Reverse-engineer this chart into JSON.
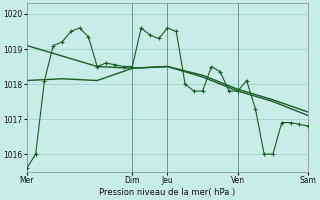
{
  "title": "",
  "xlabel": "Pression niveau de la mer( hPa )",
  "bg_color": "#c8ece6",
  "grid_color": "#a8d8d0",
  "line_color": "#1a5c28",
  "ylim": [
    1015.5,
    1020.3
  ],
  "ytick_values": [
    1016,
    1017,
    1018,
    1019,
    1020
  ],
  "line1_x": [
    0,
    6,
    12,
    18,
    24,
    30,
    36,
    42,
    48,
    54,
    60,
    66,
    72,
    78,
    84,
    90,
    96,
    102,
    108,
    114,
    120,
    126,
    132,
    138,
    144,
    150,
    156,
    162,
    168,
    174,
    180,
    186,
    192
  ],
  "line1_y": [
    1015.6,
    1016.0,
    1018.1,
    1019.1,
    1019.2,
    1019.5,
    1019.6,
    1019.35,
    1018.5,
    1018.6,
    1018.55,
    1018.5,
    1018.5,
    1019.6,
    1019.4,
    1019.3,
    1019.6,
    1019.5,
    1018.0,
    1017.8,
    1017.8,
    1018.5,
    1018.35,
    1017.8,
    1017.8,
    1018.1,
    1017.3,
    1016.0,
    1016.0,
    1016.9,
    1016.9,
    1016.85,
    1016.8
  ],
  "line2_x": [
    0,
    24,
    48,
    72,
    96,
    120,
    144,
    168,
    192
  ],
  "line2_y": [
    1018.1,
    1018.15,
    1018.1,
    1018.45,
    1018.5,
    1018.25,
    1017.85,
    1017.55,
    1017.2
  ],
  "line3_x": [
    0,
    24,
    48,
    72,
    96,
    120,
    144,
    168,
    192
  ],
  "line3_y": [
    1019.1,
    1018.8,
    1018.5,
    1018.45,
    1018.5,
    1018.2,
    1017.8,
    1017.5,
    1017.1
  ],
  "vline_x": [
    72,
    96,
    144,
    192
  ],
  "xtick_positions": [
    0,
    72,
    96,
    144,
    192
  ],
  "xtick_labels": [
    "Mer",
    "Dim",
    "Jeu",
    "Ven",
    "Sam"
  ],
  "figsize": [
    3.2,
    2.0
  ],
  "dpi": 100
}
